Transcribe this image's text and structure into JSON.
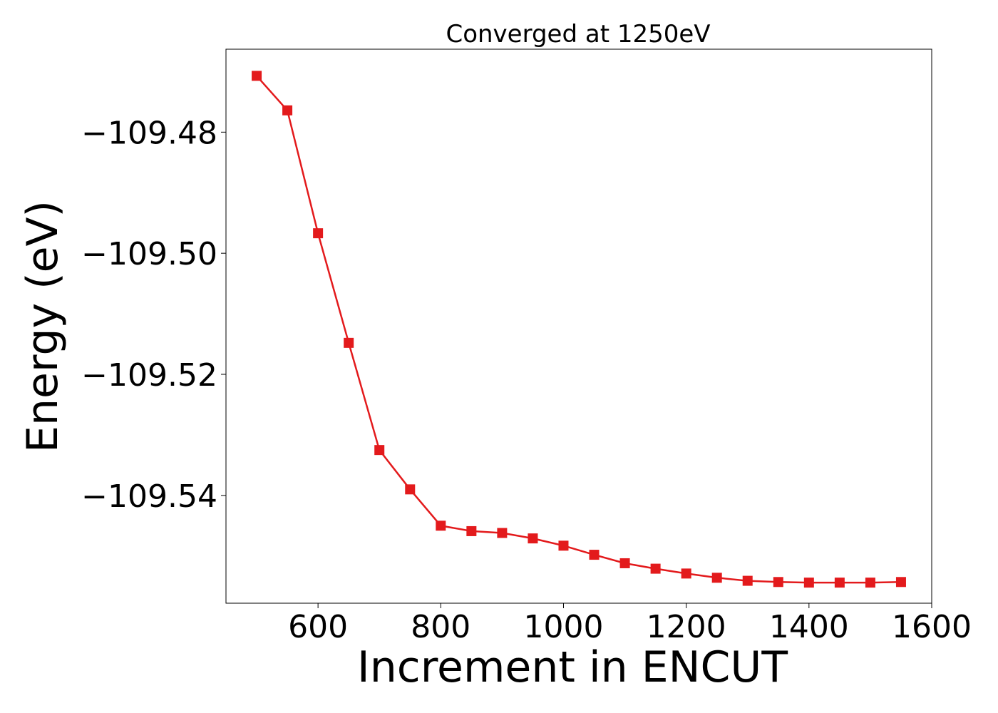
{
  "chart_data": {
    "type": "line",
    "title": "Converged at 1250eV",
    "xlabel": "Increment in ENCUT",
    "ylabel": "Energy (eV)",
    "xlim": [
      450,
      1600
    ],
    "ylim": [
      -109.5578,
      -109.4663
    ],
    "xticks": [
      600,
      800,
      1000,
      1200,
      1400,
      1600
    ],
    "xtick_labels": [
      "600",
      "800",
      "1000",
      "1200",
      "1400",
      "1600"
    ],
    "yticks": [
      -109.48,
      -109.5,
      -109.52,
      -109.54
    ],
    "ytick_labels": [
      "−109.48",
      "−109.50",
      "−109.52",
      "−109.54"
    ],
    "grid": false,
    "series": [
      {
        "marker": "square",
        "color": "#e31a1c",
        "x": [
          500,
          550,
          600,
          650,
          700,
          750,
          800,
          850,
          900,
          950,
          1000,
          1050,
          1100,
          1150,
          1200,
          1250,
          1300,
          1350,
          1400,
          1450,
          1500,
          1550
        ],
        "y": [
          -109.4707,
          -109.4764,
          -109.4967,
          -109.5148,
          -109.5325,
          -109.539,
          -109.545,
          -109.5459,
          -109.5462,
          -109.5471,
          -109.5483,
          -109.5498,
          -109.5512,
          -109.5521,
          -109.5529,
          -109.5536,
          -109.5541,
          -109.5543,
          -109.5544,
          -109.5544,
          -109.5544,
          -109.5543
        ]
      }
    ]
  }
}
